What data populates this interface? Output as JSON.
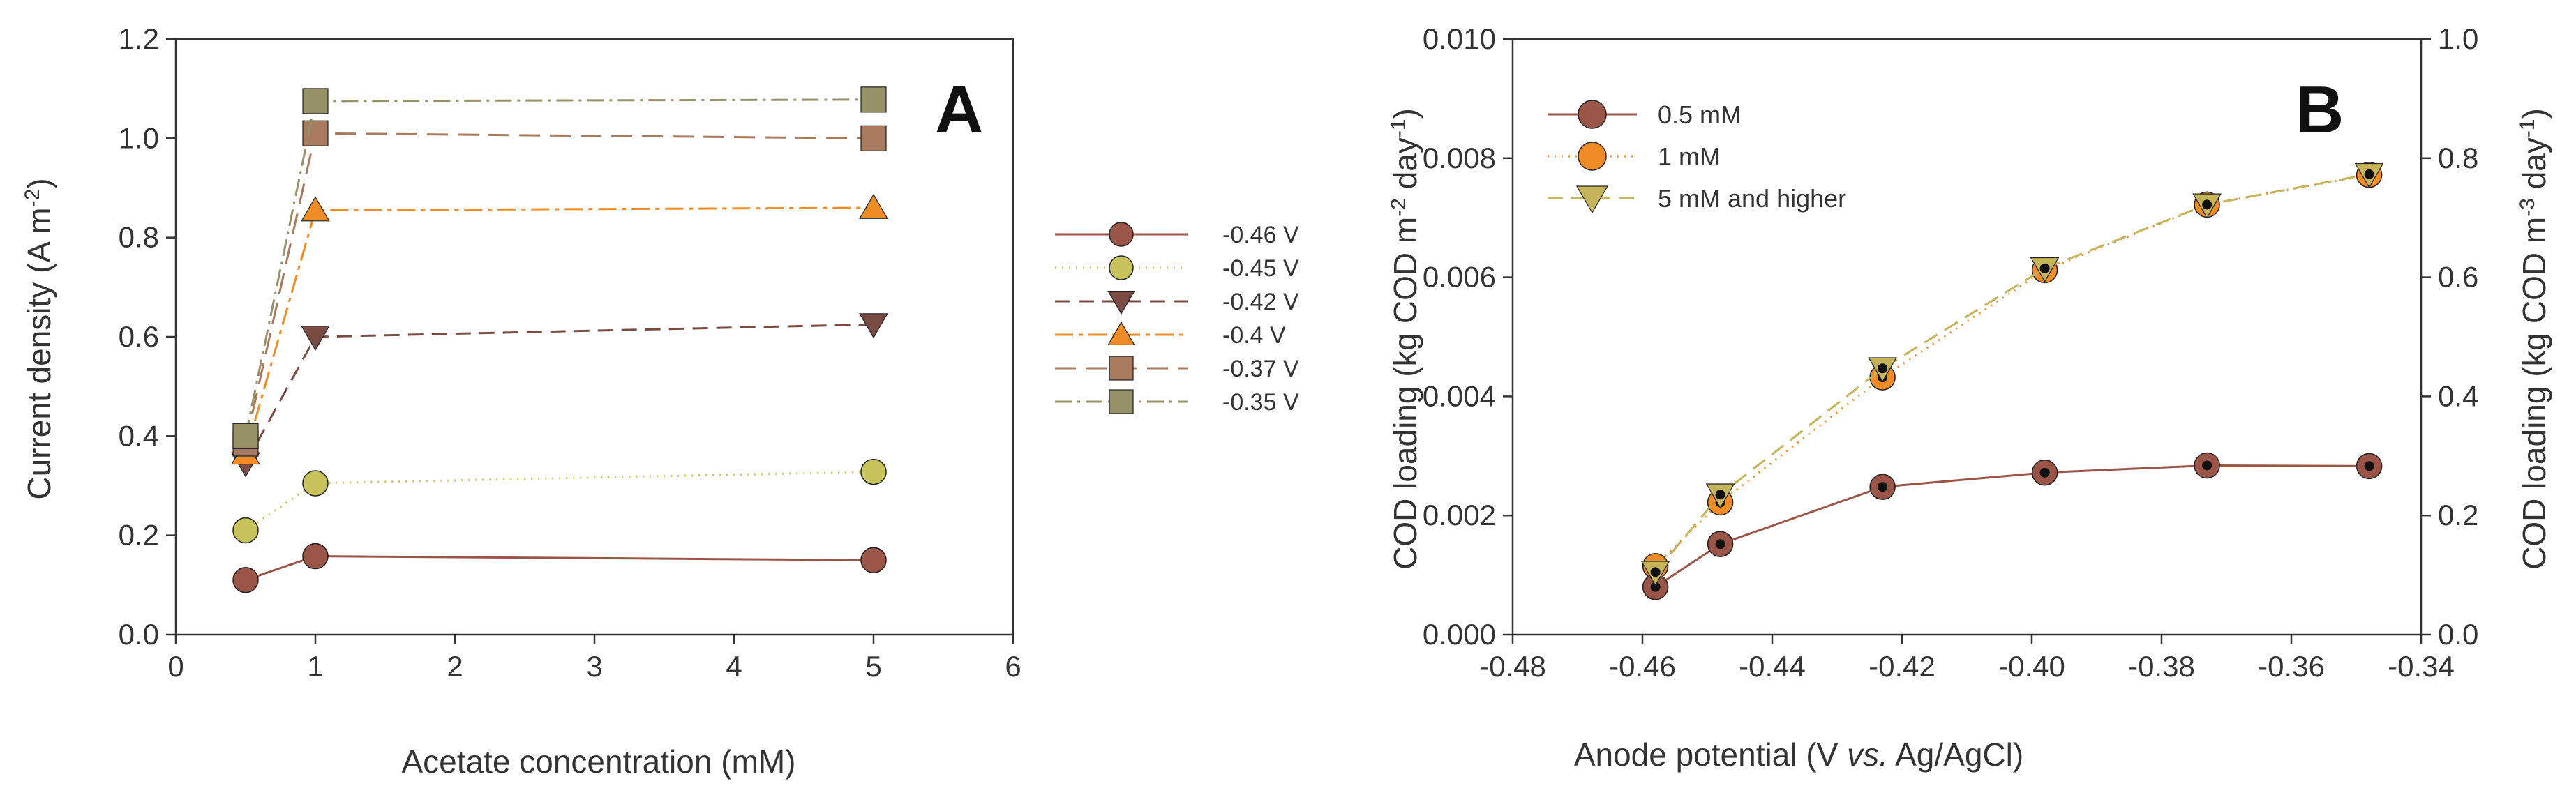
{
  "colors": {
    "axis": "#333333",
    "series_046": "#9a5548",
    "series_045": "#c8c25a",
    "series_042": "#7a4b43",
    "series_04": "#f08c25",
    "series_037": "#a87a5e",
    "series_035": "#979168",
    "b_05": "#9a5548",
    "b_1": "#f08c25",
    "b_5": "#c6b45a"
  },
  "chart_data": [
    {
      "type": "line",
      "panel_label": "A",
      "xlabel": "Acetate concentration (mM)",
      "ylabel_text": "Current density (A m",
      "ylabel_sup": "-2",
      "ylabel_end": ")",
      "xlim": [
        0,
        6
      ],
      "ylim": [
        0,
        1.2
      ],
      "xticks": [
        0,
        1,
        2,
        3,
        4,
        5,
        6
      ],
      "yticks": [
        0.0,
        0.2,
        0.4,
        0.6,
        0.8,
        1.0,
        1.2
      ],
      "ytick_labels": [
        "0.0",
        "0.2",
        "0.4",
        "0.6",
        "0.8",
        "1.0",
        "1.2"
      ],
      "x": [
        0.5,
        1,
        5
      ],
      "legend_position": "outside-right",
      "series": [
        {
          "name": "-0.46 V",
          "values": [
            0.11,
            0.158,
            0.15
          ],
          "marker": "circle",
          "dash": "",
          "color_key": "series_046"
        },
        {
          "name": "-0.45 V",
          "values": [
            0.21,
            0.305,
            0.328
          ],
          "marker": "circle",
          "dash": "2 8",
          "color_key": "series_045"
        },
        {
          "name": "-0.42 V",
          "values": [
            0.345,
            0.6,
            0.625
          ],
          "marker": "triangle-down",
          "dash": "22 12",
          "color_key": "series_042"
        },
        {
          "name": "-0.4 V",
          "values": [
            0.365,
            0.855,
            0.86
          ],
          "marker": "triangle-up",
          "dash": "26 8 6 8",
          "color_key": "series_04"
        },
        {
          "name": "-0.37 V",
          "values": [
            0.385,
            1.01,
            1.0
          ],
          "marker": "square",
          "dash": "30 14",
          "color_key": "series_037"
        },
        {
          "name": "-0.35 V",
          "values": [
            0.4,
            1.075,
            1.078
          ],
          "marker": "square",
          "dash": "24 8 4 8",
          "color_key": "series_035"
        }
      ]
    },
    {
      "type": "line",
      "panel_label": "B",
      "xlabel_pre": "Anode potential (V ",
      "xlabel_italic": "vs.",
      "xlabel_post": " Ag/AgCl)",
      "ylabel_left": {
        "text": "COD loading (kg COD m",
        "sup1": "-2",
        "mid": " day",
        "sup2": "-1",
        "end": ")"
      },
      "ylabel_right": {
        "text": "COD loading (kg COD m",
        "sup1": "-3",
        "mid": " day",
        "sup2": "-1",
        "end": ")"
      },
      "xlim": [
        -0.48,
        -0.34
      ],
      "ylim": [
        0,
        0.01
      ],
      "ylim_right": [
        0,
        1.0
      ],
      "xticks": [
        -0.48,
        -0.46,
        -0.44,
        -0.42,
        -0.4,
        -0.38,
        -0.36,
        -0.34
      ],
      "xtick_labels": [
        "-0.48",
        "-0.46",
        "-0.44",
        "-0.42",
        "-0.40",
        "-0.38",
        "-0.36",
        "-0.34"
      ],
      "yticks": [
        0,
        0.002,
        0.004,
        0.006,
        0.008,
        0.01
      ],
      "ytick_labels": [
        "0.000",
        "0.002",
        "0.004",
        "0.006",
        "0.008",
        "0.010"
      ],
      "yticks_right": [
        0,
        0.2,
        0.4,
        0.6,
        0.8,
        1.0
      ],
      "ytick_labels_right": [
        "0.0",
        "0.2",
        "0.4",
        "0.6",
        "0.8",
        "1.0"
      ],
      "x": [
        -0.458,
        -0.448,
        -0.423,
        -0.398,
        -0.373,
        -0.348
      ],
      "legend_position": "top-left",
      "series": [
        {
          "name": "0.5 mM",
          "values": [
            0.0008,
            0.00152,
            0.00248,
            0.00272,
            0.00284,
            0.00283
          ],
          "marker": "circle",
          "dash": "",
          "color_key": "b_05"
        },
        {
          "name": "1 mM",
          "values": [
            0.00115,
            0.00222,
            0.00432,
            0.00612,
            0.00722,
            0.00772
          ],
          "marker": "circle",
          "dash": "2 8",
          "color_key": "b_1"
        },
        {
          "name": "5 mM and higher",
          "values": [
            0.00105,
            0.00235,
            0.00447,
            0.00615,
            0.00722,
            0.00773
          ],
          "marker": "triangle-down",
          "dash": "22 12",
          "color_key": "b_5"
        }
      ]
    }
  ]
}
